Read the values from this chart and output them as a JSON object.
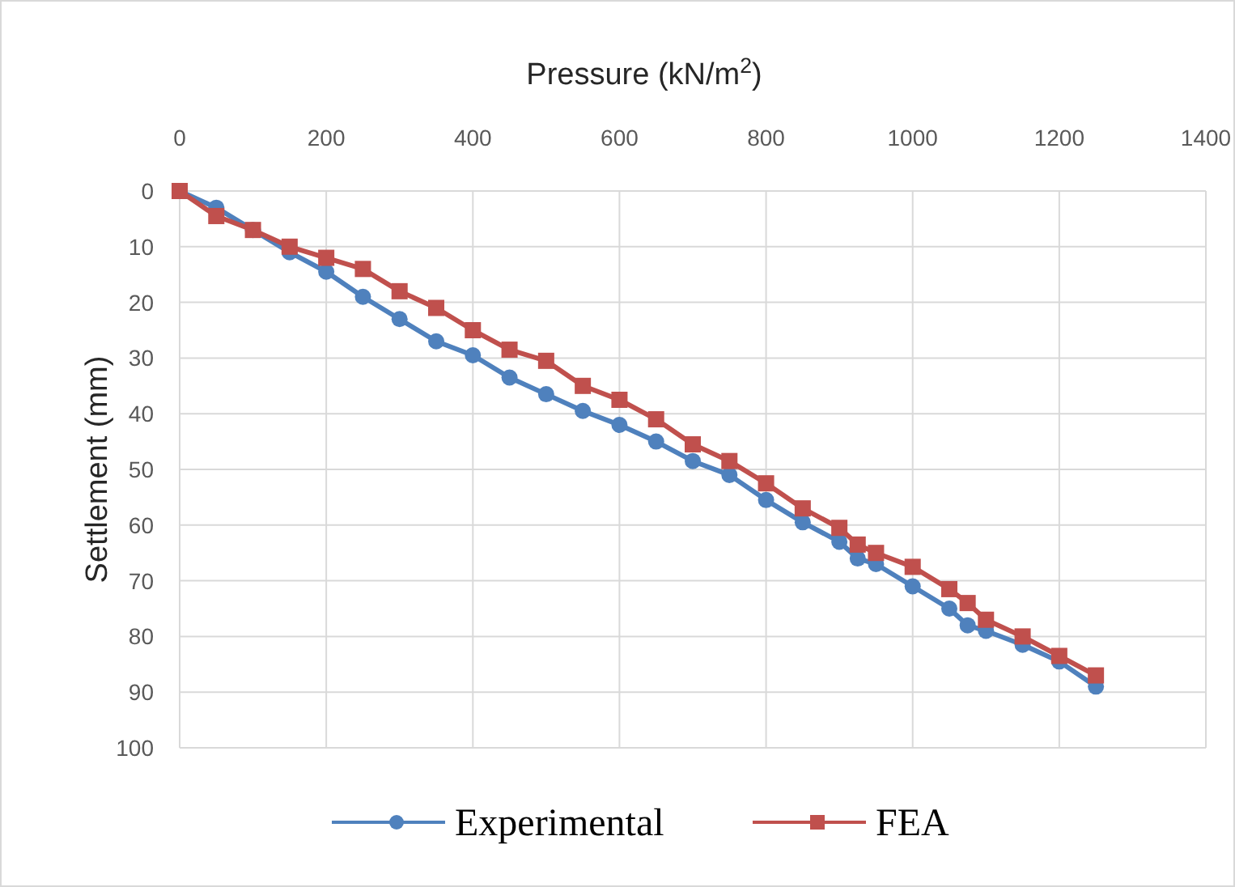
{
  "chart_data": {
    "type": "line",
    "xlabel": "Pressure (kN/m$^{2}$)",
    "ylabel": "Settlement (mm)",
    "x": [
      0,
      50,
      100,
      150,
      200,
      250,
      300,
      350,
      400,
      450,
      500,
      550,
      600,
      650,
      700,
      750,
      800,
      850,
      900,
      925,
      950,
      1000,
      1050,
      1075,
      1100,
      1150,
      1200,
      1250
    ],
    "series": [
      {
        "name": "Experimental",
        "color": "#4f81bd",
        "marker": "circle",
        "values": [
          0,
          3,
          7,
          11,
          14.5,
          19,
          23,
          27,
          29.5,
          33.5,
          36.5,
          39.5,
          42,
          45,
          48.5,
          51,
          55.5,
          59.5,
          63,
          66,
          67,
          71,
          75,
          78,
          79,
          81.5,
          84.5,
          89
        ]
      },
      {
        "name": "FEA",
        "color": "#c0504d",
        "marker": "square",
        "values": [
          0,
          4.5,
          7,
          10,
          12,
          14,
          18,
          21,
          25,
          28.5,
          30.5,
          35,
          37.5,
          41,
          45.5,
          48.5,
          52.5,
          57,
          60.5,
          63.5,
          65,
          67.5,
          71.5,
          74,
          77,
          80,
          83.5,
          87
        ]
      }
    ],
    "xlim": [
      0,
      1400
    ],
    "xticks": [
      0,
      200,
      400,
      600,
      800,
      1000,
      1200,
      1400
    ],
    "ylim": [
      100,
      0
    ],
    "yticks": [
      0,
      10,
      20,
      30,
      40,
      50,
      60,
      70,
      80,
      90,
      100
    ],
    "grid": true,
    "legend": "bottom"
  }
}
